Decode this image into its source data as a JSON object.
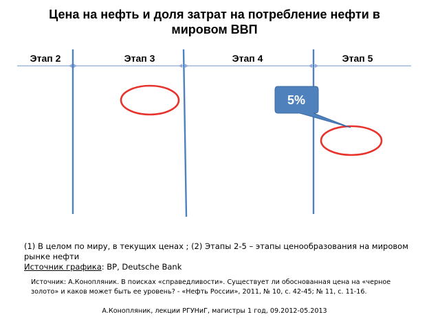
{
  "title": {
    "line1": "Цена на нефть и доля затрат на потребление нефти в",
    "line2": "мировом ВВП"
  },
  "stages": [
    "Этап 2",
    "Этап 3",
    "Этап 4",
    "Этап 5"
  ],
  "callout": {
    "text": "5%",
    "fill": "#4F81BD"
  },
  "colors": {
    "divider": "#4F81BD",
    "axis": "#8EA9DB",
    "ellipse": "#E8322C"
  },
  "notes": {
    "line1": "(1) В целом по миру, в текущих ценах ; (2) Этапы 2-5 – этапы ценообразования на мировом рынке нефти",
    "source_label": "Источник графика",
    "source_value": ": BP, Deutsche Bank"
  },
  "citation": "Источник: А.Конопляник. В поисках «справедливости». Существует ли обоснованная цена на «черное золото» и каков может быть ее уровень? - «Нефть России», 2011, № 10, с. 42-45; № 11, с. 11-16.",
  "footer": "А.Конопляник, лекции РГУНиГ, магистры 1 год, 09.2012-05.2013"
}
